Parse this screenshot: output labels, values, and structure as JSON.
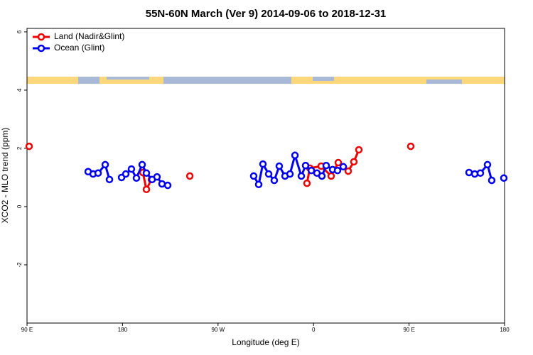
{
  "chart_data": {
    "type": "line",
    "title": "55N-60N March (Ver 9)   2014-09-06 to 2018-12-31",
    "x_label": "Longitude (deg E)",
    "y_label": "XCO2 - MLO trend (ppm)",
    "xlim": [
      90,
      540
    ],
    "ylim": [
      -4,
      6.12
    ],
    "xticks": [
      {
        "value": 90,
        "label": "90 E"
      },
      180,
      {
        "value": 270,
        "label": "90 W"
      },
      {
        "value": 360,
        "label": "0"
      },
      {
        "value": 450,
        "label": "90 E"
      },
      {
        "value": 540,
        "label": "180"
      }
    ],
    "yticks": [
      -2,
      0,
      2,
      4,
      6
    ],
    "legend": "top-left",
    "series": [
      {
        "name": "Land (Nadir&Glint)",
        "color": "#ee0000",
        "x": [
          92.0,
          null,
          199.2,
          202.5,
          207.2,
          null,
          243.4,
          null,
          353.8,
          356.5,
          367.2,
          376.6,
          383.3,
          392.7,
          398.0,
          402.7,
          null,
          451.6
        ],
        "values": [
          2.07,
          null,
          1.17,
          0.59,
          0.93,
          null,
          1.05,
          null,
          0.8,
          1.32,
          1.39,
          1.05,
          1.51,
          1.22,
          1.54,
          1.95,
          null,
          2.07
        ]
      },
      {
        "name": "Ocean (Glint)",
        "color": "#0000ee",
        "x": [
          147.6,
          152.3,
          157.0,
          163.7,
          167.7,
          null,
          179.1,
          183.1,
          188.4,
          193.1,
          198.5,
          202.5,
          207.9,
          212.5,
          217.2,
          222.6,
          null,
          303.6,
          308.3,
          312.3,
          317.7,
          323.0,
          327.7,
          333.1,
          337.8,
          342.5,
          348.5,
          352.5,
          357.9,
          363.2,
          367.9,
          371.9,
          378.0,
          382.6,
          388.0,
          null,
          506.5,
          511.9,
          517.2,
          523.9,
          527.9,
          null,
          539.3
        ],
        "values": [
          1.2,
          1.12,
          1.15,
          1.44,
          0.93,
          null,
          1.0,
          1.12,
          1.29,
          0.98,
          1.44,
          1.15,
          0.93,
          1.02,
          0.78,
          0.73,
          null,
          1.05,
          0.76,
          1.46,
          1.12,
          0.9,
          1.39,
          1.05,
          1.12,
          1.76,
          1.05,
          1.41,
          1.24,
          1.15,
          1.05,
          1.41,
          1.27,
          1.24,
          1.37,
          null,
          1.17,
          1.12,
          1.15,
          1.44,
          0.9,
          null,
          0.98
        ]
      }
    ]
  }
}
